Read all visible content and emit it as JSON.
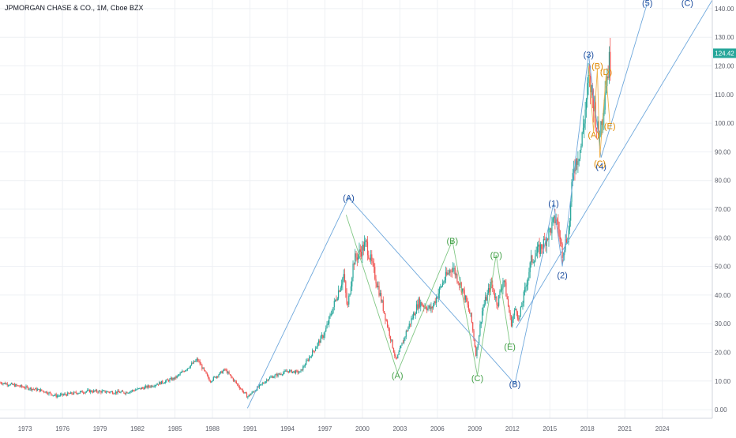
{
  "header": {
    "title": "JPMORGAN CHASE & CO., 1M, Cboe BZX"
  },
  "colors": {
    "up": "#26a69a",
    "down": "#ef5350",
    "grid": "#eef0f4",
    "axis_text": "#5d606b",
    "wave_primary": "#1e4fa0",
    "wave_intermediate": "#43a047",
    "wave_minor": "#e08a00",
    "trendline": "#6fa8dc",
    "price_badge": "#26a69a"
  },
  "price_badge": {
    "value": "124.42"
  },
  "chart_data": {
    "type": "candlestick",
    "title": "JPMORGAN CHASE & CO., 1M, Cboe BZX",
    "x_ticks": [
      "1973",
      "1976",
      "1979",
      "1982",
      "1985",
      "1988",
      "1991",
      "1994",
      "1997",
      "2000",
      "2003",
      "2006",
      "2009",
      "2012",
      "2015",
      "2018",
      "2021",
      "2024"
    ],
    "y_ticks": [
      "0.00",
      "10.00",
      "20.00",
      "30.00",
      "40.00",
      "50.00",
      "60.00",
      "70.00",
      "80.00",
      "90.00",
      "100.00",
      "110.00",
      "120.00",
      "130.00",
      "140.00"
    ],
    "xlim": [
      1971,
      2028
    ],
    "ylim": [
      -3,
      143
    ],
    "last_price": 124.42,
    "grid": true,
    "price_path": [
      [
        1971.0,
        9.5
      ],
      [
        1974.5,
        6.5
      ],
      [
        1975.5,
        4.8
      ],
      [
        1978.0,
        6.5
      ],
      [
        1981.0,
        6.0
      ],
      [
        1983.0,
        8.2
      ],
      [
        1985.0,
        11.0
      ],
      [
        1986.8,
        17.5
      ],
      [
        1987.8,
        10.0
      ],
      [
        1989.0,
        14.0
      ],
      [
        1990.8,
        4.5
      ],
      [
        1992.5,
        11.0
      ],
      [
        1994.0,
        13.5
      ],
      [
        1995.0,
        13.0
      ],
      [
        1997.0,
        27.0
      ],
      [
        1998.5,
        47.0
      ],
      [
        1998.8,
        35.0
      ],
      [
        1999.3,
        52.0
      ],
      [
        2000.3,
        58.0
      ],
      [
        2001.3,
        42.0
      ],
      [
        2002.7,
        17.0
      ],
      [
        2003.5,
        27.0
      ],
      [
        2004.5,
        37.5
      ],
      [
        2005.5,
        35.0
      ],
      [
        2006.5,
        45.0
      ],
      [
        2007.2,
        50.0
      ],
      [
        2008.0,
        42.0
      ],
      [
        2008.7,
        32.0
      ],
      [
        2009.1,
        19.0
      ],
      [
        2009.6,
        35.0
      ],
      [
        2010.3,
        44.0
      ],
      [
        2010.8,
        37.0
      ],
      [
        2011.3,
        46.0
      ],
      [
        2011.9,
        30.0
      ],
      [
        2012.3,
        36.0
      ],
      [
        2012.5,
        31.0
      ],
      [
        2013.5,
        52.0
      ],
      [
        2014.5,
        58.0
      ],
      [
        2015.5,
        67.0
      ],
      [
        2016.0,
        55.0
      ],
      [
        2016.5,
        62.0
      ],
      [
        2016.9,
        85.0
      ],
      [
        2017.5,
        92.0
      ],
      [
        2018.1,
        115.0
      ],
      [
        2018.5,
        108.0
      ],
      [
        2018.9,
        95.0
      ],
      [
        2019.1,
        100.0
      ],
      [
        2019.5,
        115.0
      ],
      [
        2019.9,
        124.42
      ]
    ],
    "wave_labels": [
      {
        "text": "(A)",
        "x": 1998.9,
        "y": 74.0,
        "degree": "primary"
      },
      {
        "text": "(B)",
        "x": 2012.2,
        "y": 9.0,
        "degree": "primary"
      },
      {
        "text": "(1)",
        "x": 2015.3,
        "y": 72.0,
        "degree": "primary"
      },
      {
        "text": "(2)",
        "x": 2016.0,
        "y": 47.0,
        "degree": "primary"
      },
      {
        "text": "(3)",
        "x": 2018.1,
        "y": 124.0,
        "degree": "primary"
      },
      {
        "text": "(4)",
        "x": 2019.1,
        "y": 85.0,
        "degree": "primary"
      },
      {
        "text": "(5)",
        "x": 2022.8,
        "y": 142.0,
        "degree": "primary"
      },
      {
        "text": "(C)",
        "x": 2026.0,
        "y": 142.0,
        "degree": "primary"
      },
      {
        "text": "(A)",
        "x": 2002.8,
        "y": 12.0,
        "degree": "intermediate"
      },
      {
        "text": "(B)",
        "x": 2007.2,
        "y": 59.0,
        "degree": "intermediate"
      },
      {
        "text": "(C)",
        "x": 2009.2,
        "y": 11.0,
        "degree": "intermediate"
      },
      {
        "text": "(D)",
        "x": 2010.7,
        "y": 54.0,
        "degree": "intermediate"
      },
      {
        "text": "(E)",
        "x": 2011.8,
        "y": 22.0,
        "degree": "intermediate"
      },
      {
        "text": "(A)",
        "x": 2018.5,
        "y": 96.0,
        "degree": "minor"
      },
      {
        "text": "(B)",
        "x": 2018.8,
        "y": 120.0,
        "degree": "minor"
      },
      {
        "text": "(C)",
        "x": 2019.0,
        "y": 86.0,
        "degree": "minor"
      },
      {
        "text": "(D)",
        "x": 2019.5,
        "y": 118.0,
        "degree": "minor"
      },
      {
        "text": "(E)",
        "x": 2019.8,
        "y": 99.0,
        "degree": "minor"
      }
    ],
    "wave_lines": [
      {
        "degree": "primary",
        "points": [
          [
            1990.8,
            0.5
          ],
          [
            1998.9,
            74.0
          ],
          [
            2012.2,
            9.0
          ],
          [
            2015.3,
            72.0
          ],
          [
            2016.0,
            50.0
          ],
          [
            2018.1,
            124.0
          ],
          [
            2019.1,
            88.0
          ],
          [
            2022.8,
            142.0
          ]
        ]
      },
      {
        "degree": "intermediate",
        "points": [
          [
            1998.7,
            68.0
          ],
          [
            2002.8,
            13.0
          ],
          [
            2007.2,
            59.0
          ],
          [
            2009.2,
            12.0
          ],
          [
            2010.7,
            54.0
          ],
          [
            2011.8,
            23.0
          ]
        ]
      },
      {
        "degree": "minor",
        "points": [
          [
            2018.1,
            120.0
          ],
          [
            2018.5,
            97.0
          ],
          [
            2018.8,
            119.0
          ],
          [
            2019.0,
            88.0
          ],
          [
            2019.5,
            117.0
          ],
          [
            2019.8,
            100.0
          ]
        ]
      }
    ],
    "trendlines": [
      {
        "points": [
          [
            2012.3,
            28.5
          ],
          [
            2028.0,
            143.0
          ]
        ]
      }
    ]
  }
}
